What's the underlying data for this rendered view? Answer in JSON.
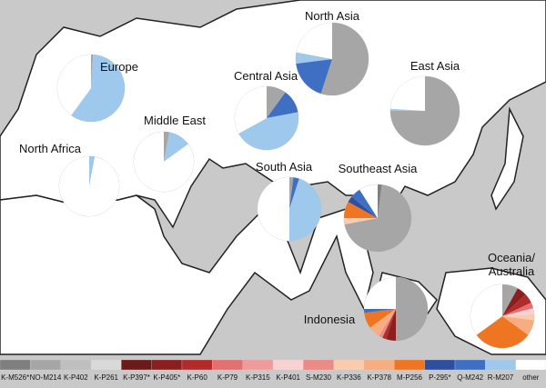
{
  "legend": {
    "items": [
      {
        "label": "K-M526*",
        "color": "#7f7f7f"
      },
      {
        "label": "NO-M214",
        "color": "#a6a6a6"
      },
      {
        "label": "K-P402",
        "color": "#bfbfbf"
      },
      {
        "label": "K-P261",
        "color": "#d9d9d9"
      },
      {
        "label": "K-P397*",
        "color": "#6b1a1a"
      },
      {
        "label": "K-P405*",
        "color": "#8b1e1e"
      },
      {
        "label": "K-P60",
        "color": "#b22b2b"
      },
      {
        "label": "K-P79",
        "color": "#e37070"
      },
      {
        "label": "K-P315",
        "color": "#f09a9a"
      },
      {
        "label": "K-P401",
        "color": "#f8d2d2"
      },
      {
        "label": "S-M230",
        "color": "#ec8b86"
      },
      {
        "label": "K-P336",
        "color": "#f9ccb0"
      },
      {
        "label": "K-P378",
        "color": "#f7ad80"
      },
      {
        "label": "M-P256",
        "color": "#ee7622"
      },
      {
        "label": "P-295*",
        "color": "#2f4e9e"
      },
      {
        "label": "Q-M242",
        "color": "#3e6fc2"
      },
      {
        "label": "R-M207",
        "color": "#9ec8ec"
      },
      {
        "label": "other",
        "color": "#ffffff"
      }
    ]
  },
  "regions": [
    {
      "name": "Europe",
      "values": [
        0,
        1,
        0,
        0,
        0,
        0,
        0,
        0,
        0,
        0,
        0,
        0,
        0,
        0,
        0,
        0,
        59,
        40
      ]
    },
    {
      "name": "North Asia",
      "values": [
        0,
        55,
        0,
        0,
        0,
        0,
        0,
        0,
        0,
        0,
        0,
        0,
        0,
        0,
        0,
        18,
        5,
        22
      ]
    },
    {
      "name": "Central Asia",
      "values": [
        0,
        10,
        0,
        0,
        0,
        0,
        0,
        0,
        0,
        0,
        0,
        0,
        0,
        0,
        0,
        12,
        45,
        33
      ]
    },
    {
      "name": "East Asia",
      "values": [
        0,
        75,
        0,
        0,
        0,
        0,
        0,
        0,
        0,
        0,
        0,
        0,
        0,
        0,
        0,
        0,
        1,
        24
      ]
    },
    {
      "name": "Middle East",
      "values": [
        0,
        3,
        0,
        0,
        0,
        0,
        0,
        0,
        0,
        0,
        0,
        0,
        0,
        0,
        0,
        0,
        12,
        85
      ]
    },
    {
      "name": "North Africa",
      "values": [
        0,
        0,
        0,
        0,
        0,
        0,
        0,
        0,
        0,
        0,
        0,
        0,
        0,
        0,
        0,
        0,
        3,
        97
      ]
    },
    {
      "name": "South Asia",
      "values": [
        0,
        2,
        0,
        0,
        0,
        0,
        0,
        0,
        0,
        0,
        0,
        0,
        0,
        0,
        0,
        3,
        45,
        50
      ]
    },
    {
      "name": "Southeast Asia",
      "values": [
        2,
        70,
        0,
        0,
        0,
        0,
        0,
        0,
        0,
        0,
        0,
        3,
        0,
        8,
        3,
        5,
        0,
        9
      ]
    },
    {
      "name": "Indonesia",
      "values": [
        0,
        50,
        0,
        0,
        0,
        5,
        2,
        0,
        0,
        0,
        2,
        0,
        6,
        8,
        0,
        2,
        0,
        25
      ]
    },
    {
      "name": "Oceania/ Australia",
      "values": [
        0,
        8,
        0,
        0,
        0,
        5,
        5,
        3,
        0,
        3,
        0,
        3,
        8,
        30,
        0,
        0,
        0,
        35
      ]
    }
  ]
}
